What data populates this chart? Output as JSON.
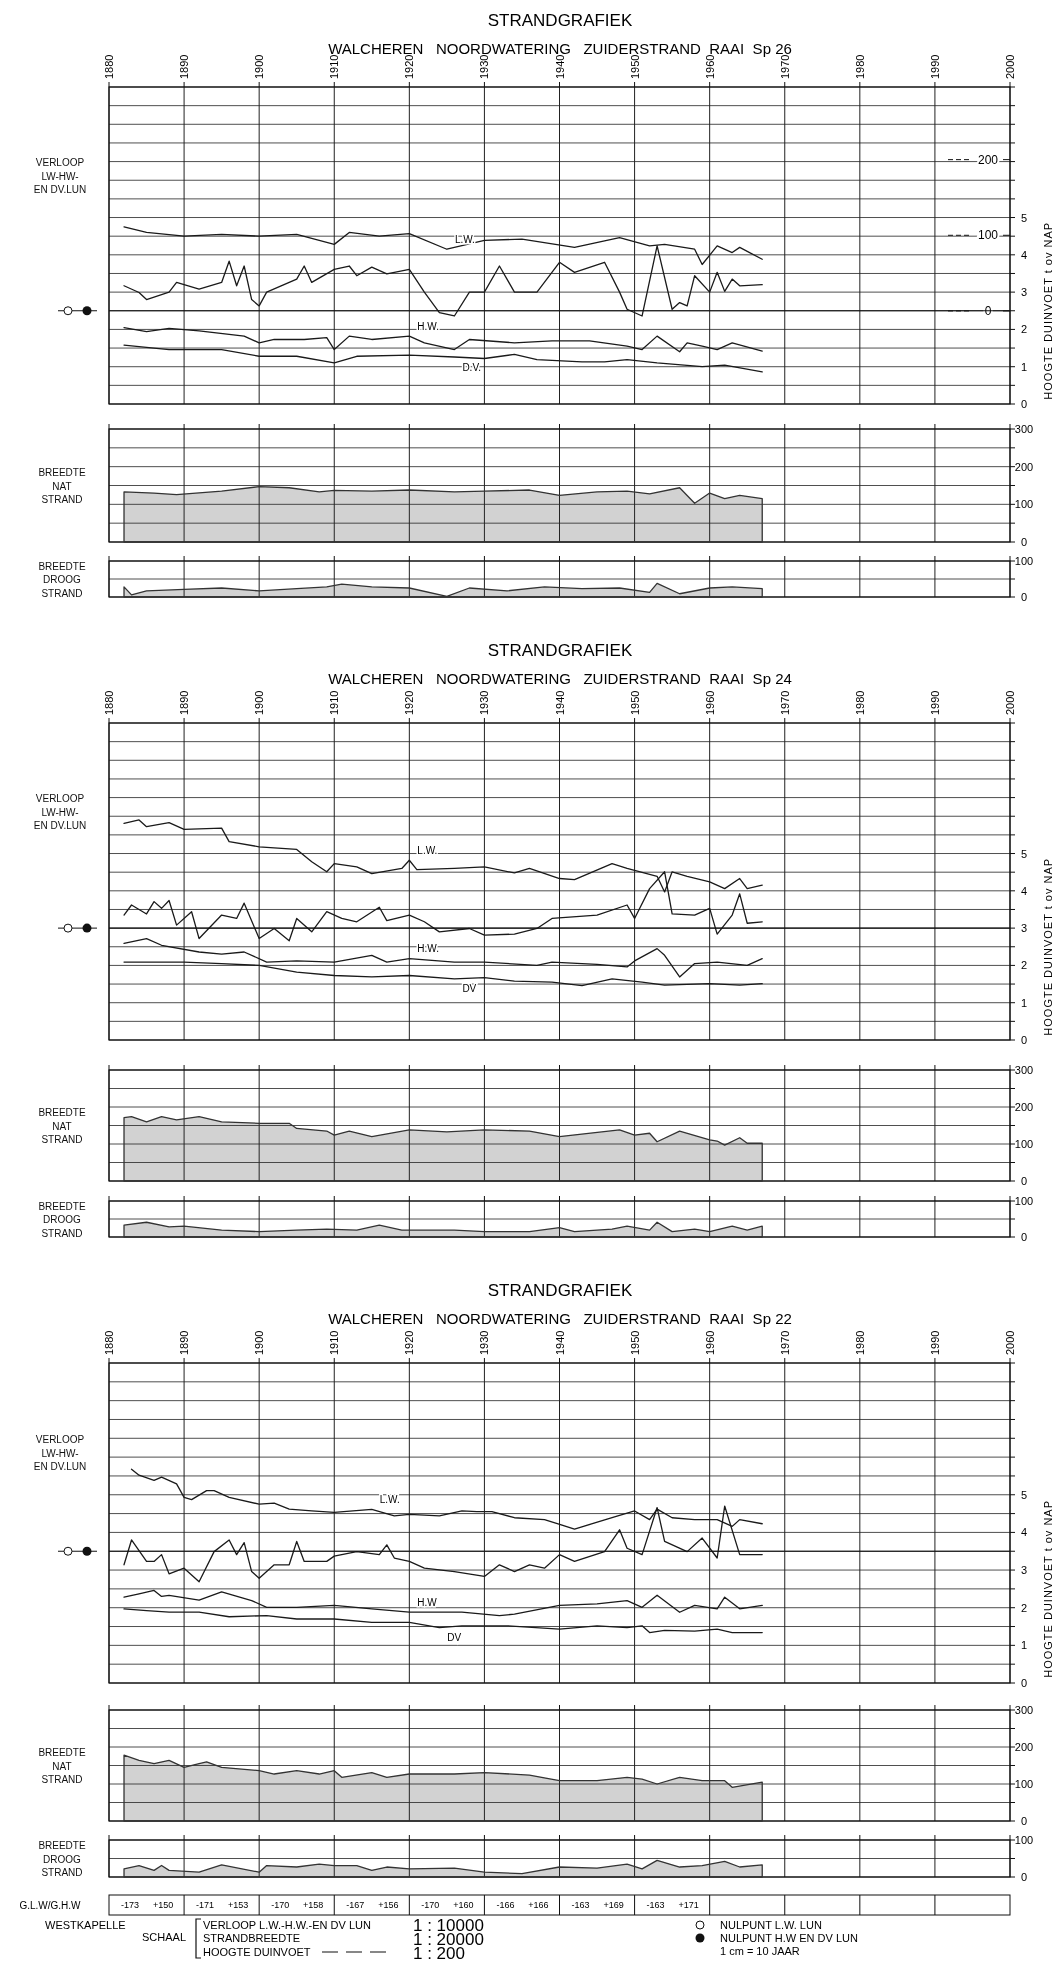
{
  "chart_data": [
    {
      "type": "line",
      "title": "STRANDGRAFIEK",
      "subtitle": "WALCHEREN   NOORDWATERING   ZUIDERSTRAND  RAAI  Sp 26",
      "ylabel": "HOOGTE DUINVOET t ov NAP",
      "annotations": [
        "VERLOOP\nLW-HW-\nEN DV.LUN"
      ],
      "xlim": [
        1880,
        2000
      ],
      "xticks": [
        1880,
        1890,
        1900,
        1910,
        1920,
        1930,
        1940,
        1950,
        1960,
        1970,
        1980,
        1990,
        2000
      ],
      "ylim": [
        0,
        8.5
      ],
      "yticks": [
        0,
        {
          "value": 0.5,
          "label": null
        },
        1,
        {
          "value": 1.5,
          "label": null
        },
        2,
        {
          "value": 2.5,
          "label": null
        },
        3,
        {
          "value": 3.5,
          "label": null
        },
        4,
        {
          "value": 4.5,
          "label": null
        },
        5,
        {
          "value": 5.5,
          "label": null
        },
        {
          "value": 6,
          "label": null
        },
        {
          "value": 6.5,
          "label": null
        },
        {
          "value": 7,
          "label": null
        },
        {
          "value": 7.5,
          "label": null
        },
        {
          "value": 8,
          "label": null
        },
        {
          "value": 8.5,
          "label": null
        }
      ],
      "y2lim": [
        -123,
        296
      ],
      "y2ticks": [
        0,
        100,
        200
      ],
      "grid": true,
      "ref_lines": [
        {
          "axis": "y",
          "value": 2.5
        }
      ],
      "series": [
        {
          "name": "L.W.",
          "color": "#1a1a1a",
          "x": [
            1882,
            1885,
            1890,
            1895,
            1900,
            1905,
            1910,
            1912,
            1916,
            1920,
            1925,
            1930,
            1935,
            1942,
            1948,
            1952,
            1954,
            1958,
            1959,
            1961,
            1963,
            1964,
            1967
          ],
          "values": [
            4.75,
            4.6,
            4.5,
            4.55,
            4.5,
            4.55,
            4.28,
            4.6,
            4.5,
            4.57,
            4.15,
            4.39,
            4.42,
            4.2,
            4.46,
            4.24,
            4.28,
            4.15,
            3.74,
            4.24,
            4.06,
            4.2,
            3.88
          ]
        },
        {
          "color": "#1a1a1a",
          "x": [
            1882,
            1884,
            1885,
            1888,
            1889,
            1892,
            1895,
            1896,
            1897,
            1898,
            1899,
            1900,
            1901,
            1905,
            1906,
            1907,
            1910,
            1912,
            1913,
            1915,
            1917,
            1920,
            1922,
            1924,
            1926,
            1928,
            1930,
            1932,
            1934,
            1937,
            1940,
            1942,
            1946,
            1948,
            1949,
            1951,
            1953,
            1955,
            1956,
            1957,
            1958,
            1960,
            1961,
            1962,
            1963,
            1964,
            1967
          ],
          "values": [
            3.17,
            2.99,
            2.8,
            3.0,
            3.26,
            3.08,
            3.26,
            3.83,
            3.17,
            3.7,
            2.8,
            2.63,
            3.0,
            3.35,
            3.7,
            3.26,
            3.61,
            3.7,
            3.44,
            3.67,
            3.49,
            3.61,
            3.0,
            2.45,
            2.36,
            3.0,
            3.0,
            3.7,
            3.0,
            3.0,
            3.8,
            3.53,
            3.8,
            3.0,
            2.54,
            2.36,
            4.24,
            2.54,
            2.72,
            2.63,
            3.44,
            3.0,
            3.53,
            3.02,
            3.35,
            3.17,
            3.2
          ]
        },
        {
          "name": "H.W.",
          "color": "#1a1a1a",
          "x": [
            1882,
            1885,
            1888,
            1892,
            1898,
            1900,
            1902,
            1906,
            1909,
            1910,
            1912,
            1915,
            1920,
            1922,
            1926,
            1928,
            1934,
            1939,
            1944,
            1949,
            1951,
            1953,
            1956,
            1957,
            1959,
            1961,
            1963,
            1967
          ],
          "values": [
            2.05,
            1.94,
            2.03,
            1.96,
            1.82,
            1.64,
            1.73,
            1.73,
            1.78,
            1.46,
            1.82,
            1.73,
            1.82,
            1.64,
            1.46,
            1.73,
            1.64,
            1.69,
            1.69,
            1.55,
            1.46,
            1.82,
            1.4,
            1.64,
            1.55,
            1.46,
            1.64,
            1.42
          ]
        },
        {
          "name": "D.V.",
          "color": "#1a1a1a",
          "x": [
            1882,
            1888,
            1895,
            1900,
            1905,
            1910,
            1913,
            1920,
            1926,
            1930,
            1934,
            1937,
            1943,
            1946,
            1949,
            1953,
            1959,
            1962,
            1967
          ],
          "values": [
            1.58,
            1.46,
            1.46,
            1.28,
            1.28,
            1.1,
            1.28,
            1.31,
            1.26,
            1.22,
            1.33,
            1.19,
            1.13,
            1.13,
            1.19,
            1.1,
            1.0,
            1.04,
            0.86
          ]
        }
      ]
    },
    {
      "type": "area",
      "ylabel": "BREEDTE\nNAT\nSTRAND",
      "xlim": [
        1880,
        2000
      ],
      "xticks": [
        1880,
        1890,
        1900,
        1910,
        1920,
        1930,
        1940,
        1950,
        1960,
        1970,
        1980,
        1990,
        2000
      ],
      "ylim": [
        0,
        300
      ],
      "yticks": [
        0,
        {
          "value": 50,
          "label": null
        },
        100,
        {
          "value": 150,
          "label": null
        },
        200,
        {
          "value": 250,
          "label": null
        },
        300
      ],
      "grid": true,
      "tick_labels": "y",
      "series": [
        {
          "color": "#333333",
          "x": [
            1882,
            1886,
            1889,
            1895,
            1900,
            1904,
            1908,
            1910,
            1915,
            1920,
            1926,
            1930,
            1936,
            1940,
            1945,
            1949,
            1952,
            1956,
            1958,
            1960,
            1962,
            1964,
            1967
          ],
          "values": [
            133,
            130,
            126,
            135,
            147,
            144,
            133,
            137,
            135,
            138,
            133,
            135,
            138,
            124,
            133,
            135,
            128,
            144,
            103,
            130,
            115,
            124,
            115
          ]
        }
      ]
    },
    {
      "type": "area",
      "ylabel": "BREEDTE\nDROOG\nSTRAND",
      "xlim": [
        1880,
        2000
      ],
      "xticks": [
        1880,
        1890,
        1900,
        1910,
        1920,
        1930,
        1940,
        1950,
        1960,
        1970,
        1980,
        1990,
        2000
      ],
      "ylim": [
        0,
        100
      ],
      "yticks": [
        0,
        {
          "value": 50,
          "label": null
        },
        100
      ],
      "grid": true,
      "tick_labels": "y",
      "series": [
        {
          "color": "#333333",
          "x": [
            1882,
            1883,
            1885,
            1890,
            1895,
            1900,
            1905,
            1909,
            1911,
            1915,
            1920,
            1925,
            1928,
            1933,
            1938,
            1943,
            1948,
            1952,
            1953,
            1956,
            1960,
            1963,
            1967
          ],
          "values": [
            28,
            6,
            17,
            21,
            25,
            17,
            23,
            28,
            36,
            28,
            25,
            2,
            25,
            17,
            28,
            23,
            25,
            13,
            38,
            9,
            25,
            28,
            23
          ]
        }
      ]
    },
    {
      "type": "line",
      "title": "STRANDGRAFIEK",
      "subtitle": "WALCHEREN   NOORDWATERING   ZUIDERSTRAND  RAAI  Sp 24",
      "ylabel": "HOOGTE DUINVOET t ov NAP",
      "annotations": [
        "VERLOOP\nLW-HW-\nEN DV.LUN"
      ],
      "xlim": [
        1880,
        2000
      ],
      "xticks": [
        1880,
        1890,
        1900,
        1910,
        1920,
        1930,
        1940,
        1950,
        1960,
        1970,
        1980,
        1990,
        2000
      ],
      "ylim": [
        0,
        8.5
      ],
      "yticks": [
        0,
        {
          "value": 0.5,
          "label": null
        },
        1,
        {
          "value": 1.5,
          "label": null
        },
        2,
        {
          "value": 2.5,
          "label": null
        },
        3,
        {
          "value": 3.5,
          "label": null
        },
        4,
        {
          "value": 4.5,
          "label": null
        },
        5,
        {
          "value": 5.5,
          "label": null
        },
        {
          "value": 6,
          "label": null
        },
        {
          "value": 6.5,
          "label": null
        },
        {
          "value": 7,
          "label": null
        },
        {
          "value": 7.5,
          "label": null
        },
        {
          "value": 8,
          "label": null
        },
        {
          "value": 8.5,
          "label": null
        }
      ],
      "grid": true,
      "ref_lines": [
        {
          "axis": "y",
          "value": 3
        }
      ],
      "series": [
        {
          "name": "L.W.",
          "color": "#1a1a1a",
          "x": [
            1882,
            1884,
            1885,
            1888,
            1890,
            1895,
            1896,
            1900,
            1905,
            1907,
            1909,
            1910,
            1913,
            1915,
            1919,
            1920,
            1921,
            1926,
            1930,
            1934,
            1936,
            1940,
            1942,
            1947,
            1949,
            1953,
            1954,
            1955,
            1957,
            1960,
            1962,
            1964,
            1965,
            1967
          ],
          "values": [
            5.81,
            5.9,
            5.72,
            5.83,
            5.65,
            5.68,
            5.32,
            5.18,
            5.11,
            4.78,
            4.51,
            4.73,
            4.64,
            4.46,
            4.6,
            4.82,
            4.57,
            4.6,
            4.64,
            4.48,
            4.6,
            4.33,
            4.3,
            4.73,
            4.6,
            4.39,
            3.97,
            4.51,
            4.39,
            4.24,
            4.06,
            4.33,
            4.06,
            4.15
          ]
        },
        {
          "color": "#1a1a1a",
          "x": [
            1882,
            1883,
            1885,
            1886,
            1887,
            1888,
            1889,
            1891,
            1892,
            1895,
            1897,
            1898,
            1900,
            1902,
            1904,
            1905,
            1907,
            1909,
            1911,
            1913,
            1916,
            1917,
            1920,
            1922,
            1924,
            1928,
            1930,
            1934,
            1937,
            1939,
            1945,
            1949,
            1950,
            1952,
            1954,
            1955,
            1958,
            1960,
            1961,
            1963,
            1964,
            1965,
            1967
          ],
          "values": [
            3.35,
            3.62,
            3.38,
            3.71,
            3.53,
            3.74,
            3.08,
            3.44,
            2.72,
            3.35,
            3.26,
            3.67,
            2.72,
            2.99,
            2.66,
            3.26,
            2.9,
            3.44,
            3.26,
            3.17,
            3.56,
            3.2,
            3.35,
            3.17,
            2.9,
            2.99,
            2.81,
            2.84,
            2.99,
            3.26,
            3.35,
            3.62,
            3.26,
            4.06,
            4.51,
            3.38,
            3.35,
            3.53,
            2.84,
            3.35,
            3.92,
            3.13,
            3.17
          ]
        },
        {
          "name": "H.W.",
          "color": "#1a1a1a",
          "x": [
            1882,
            1885,
            1887,
            1892,
            1895,
            1898,
            1901,
            1905,
            1910,
            1915,
            1917,
            1920,
            1926,
            1930,
            1937,
            1939,
            1945,
            1949,
            1950,
            1953,
            1954,
            1956,
            1958,
            1961,
            1965,
            1967
          ],
          "values": [
            2.59,
            2.72,
            2.54,
            2.36,
            2.3,
            2.36,
            2.09,
            2.12,
            2.09,
            2.27,
            2.09,
            2.18,
            2.09,
            2.09,
            2.0,
            2.09,
            2.03,
            1.96,
            2.12,
            2.45,
            2.27,
            1.69,
            2.05,
            2.09,
            2.0,
            2.18
          ]
        },
        {
          "name": "DV",
          "color": "#1a1a1a",
          "x": [
            1882,
            1890,
            1895,
            1900,
            1905,
            1910,
            1915,
            1920,
            1926,
            1930,
            1934,
            1939,
            1943,
            1947,
            1951,
            1954,
            1960,
            1964,
            1967
          ],
          "values": [
            2.09,
            2.09,
            2.05,
            2.0,
            1.82,
            1.73,
            1.69,
            1.73,
            1.64,
            1.67,
            1.58,
            1.55,
            1.46,
            1.64,
            1.55,
            1.47,
            1.51,
            1.47,
            1.51
          ]
        }
      ]
    },
    {
      "type": "area",
      "ylabel": "BREEDTE\nNAT\nSTRAND",
      "xlim": [
        1880,
        2000
      ],
      "xticks": [
        1880,
        1890,
        1900,
        1910,
        1920,
        1930,
        1940,
        1950,
        1960,
        1970,
        1980,
        1990,
        2000
      ],
      "ylim": [
        0,
        300
      ],
      "yticks": [
        0,
        {
          "value": 50,
          "label": null
        },
        100,
        {
          "value": 150,
          "label": null
        },
        200,
        {
          "value": 250,
          "label": null
        },
        300
      ],
      "grid": true,
      "tick_labels": "y",
      "series": [
        {
          "color": "#333333",
          "x": [
            1882,
            1883,
            1885,
            1887,
            1889,
            1892,
            1895,
            1900,
            1904,
            1905,
            1909,
            1910,
            1912,
            1915,
            1920,
            1925,
            1930,
            1936,
            1940,
            1948,
            1950,
            1952,
            1953,
            1956,
            1960,
            1961,
            1962,
            1964,
            1965,
            1967
          ],
          "values": [
            171,
            174,
            160,
            174,
            165,
            174,
            160,
            156,
            156,
            142,
            135,
            124,
            135,
            120,
            138,
            133,
            138,
            135,
            120,
            138,
            124,
            129,
            106,
            135,
            111,
            108,
            97,
            117,
            102,
            102
          ]
        }
      ]
    },
    {
      "type": "area",
      "ylabel": "BREEDTE\nDROOG\nSTRAND",
      "xlim": [
        1880,
        2000
      ],
      "xticks": [
        1880,
        1890,
        1900,
        1910,
        1920,
        1930,
        1940,
        1950,
        1960,
        1970,
        1980,
        1990,
        2000
      ],
      "ylim": [
        0,
        100
      ],
      "yticks": [
        0,
        {
          "value": 50,
          "label": null
        },
        100
      ],
      "grid": true,
      "tick_labels": "y",
      "series": [
        {
          "color": "#333333",
          "x": [
            1882,
            1885,
            1888,
            1890,
            1895,
            1900,
            1905,
            1909,
            1913,
            1916,
            1919,
            1926,
            1930,
            1936,
            1940,
            1942,
            1947,
            1949,
            1952,
            1953,
            1955,
            1958,
            1960,
            1963,
            1965,
            1967
          ],
          "values": [
            33,
            41,
            28,
            30,
            19,
            15,
            19,
            22,
            19,
            33,
            19,
            19,
            15,
            15,
            26,
            15,
            22,
            30,
            19,
            41,
            15,
            22,
            15,
            30,
            19,
            30
          ]
        }
      ]
    },
    {
      "type": "line",
      "title": "STRANDGRAFIEK",
      "subtitle": "WALCHEREN   NOORDWATERING   ZUIDERSTRAND  RAAI  Sp 22",
      "ylabel": "HOOGTE DUINVOET t ov NAP",
      "annotations": [
        "VERLOOP\nLW-HW-\nEN DV.LUN"
      ],
      "xlim": [
        1880,
        2000
      ],
      "xticks": [
        1880,
        1890,
        1900,
        1910,
        1920,
        1930,
        1940,
        1950,
        1960,
        1970,
        1980,
        1990,
        2000
      ],
      "ylim": [
        0,
        8.5
      ],
      "yticks": [
        0,
        {
          "value": 0.5,
          "label": null
        },
        1,
        {
          "value": 1.5,
          "label": null
        },
        2,
        {
          "value": 2.5,
          "label": null
        },
        3,
        {
          "value": 3.5,
          "label": null
        },
        4,
        {
          "value": 4.5,
          "label": null
        },
        5,
        {
          "value": 5.5,
          "label": null
        },
        {
          "value": 6,
          "label": null
        },
        {
          "value": 6.5,
          "label": null
        },
        {
          "value": 7,
          "label": null
        },
        {
          "value": 7.5,
          "label": null
        },
        {
          "value": 8,
          "label": null
        },
        {
          "value": 8.5,
          "label": null
        }
      ],
      "grid": true,
      "ref_lines": [
        {
          "axis": "y",
          "value": 3.5
        }
      ],
      "series": [
        {
          "name": "L.W.",
          "color": "#1a1a1a",
          "x": [
            1883,
            1884,
            1886,
            1887,
            1889,
            1890,
            1891,
            1893,
            1894,
            1896,
            1900,
            1902,
            1904,
            1907,
            1910,
            1915,
            1918,
            1920,
            1924,
            1927,
            1929,
            1931,
            1934,
            1938,
            1942,
            1947,
            1950,
            1952,
            1953,
            1955,
            1958,
            1961,
            1963,
            1964,
            1967
          ],
          "values": [
            5.68,
            5.52,
            5.38,
            5.47,
            5.29,
            4.93,
            4.87,
            5.11,
            5.11,
            4.93,
            4.75,
            4.78,
            4.62,
            4.57,
            4.53,
            4.61,
            4.44,
            4.48,
            4.44,
            4.57,
            4.55,
            4.55,
            4.39,
            4.34,
            4.09,
            4.39,
            4.57,
            4.34,
            4.62,
            4.39,
            4.34,
            4.34,
            4.16,
            4.34,
            4.23
          ]
        },
        {
          "color": "#1a1a1a",
          "x": [
            1882,
            1883,
            1885,
            1886,
            1887,
            1888,
            1890,
            1892,
            1894,
            1896,
            1897,
            1898,
            1899,
            1900,
            1902,
            1904,
            1905,
            1906,
            1909,
            1910,
            1913,
            1916,
            1917,
            1918,
            1920,
            1922,
            1926,
            1930,
            1932,
            1934,
            1936,
            1938,
            1940,
            1942,
            1946,
            1948,
            1949,
            1951,
            1953,
            1954,
            1957,
            1959,
            1961,
            1962,
            1964,
            1967
          ],
          "values": [
            3.14,
            3.8,
            3.23,
            3.23,
            3.41,
            2.9,
            3.05,
            2.69,
            3.49,
            3.8,
            3.41,
            3.73,
            2.96,
            2.78,
            3.14,
            3.14,
            3.76,
            3.23,
            3.23,
            3.37,
            3.49,
            3.41,
            3.67,
            3.32,
            3.23,
            3.05,
            2.96,
            2.83,
            3.14,
            2.96,
            3.14,
            3.05,
            3.41,
            3.23,
            3.49,
            4.07,
            3.58,
            3.41,
            4.66,
            3.76,
            3.49,
            3.85,
            3.32,
            4.7,
            3.41,
            3.41
          ]
        },
        {
          "name": "H.W",
          "color": "#1a1a1a",
          "x": [
            1882,
            1884,
            1886,
            1887,
            1888,
            1892,
            1895,
            1899,
            1901,
            1905,
            1910,
            1915,
            1920,
            1927,
            1932,
            1934,
            1940,
            1945,
            1949,
            1951,
            1953,
            1956,
            1958,
            1961,
            1962,
            1964,
            1967
          ],
          "values": [
            2.28,
            2.37,
            2.46,
            2.3,
            2.33,
            2.2,
            2.42,
            2.19,
            2.01,
            2.01,
            2.06,
            1.97,
            1.88,
            1.88,
            1.79,
            1.83,
            2.06,
            2.1,
            2.19,
            2.01,
            2.33,
            1.88,
            2.06,
            1.97,
            2.28,
            1.97,
            2.06
          ]
        },
        {
          "name": "DV",
          "color": "#1a1a1a",
          "x": [
            1882,
            1885,
            1888,
            1892,
            1896,
            1901,
            1905,
            1910,
            1915,
            1920,
            1924,
            1927,
            1933,
            1940,
            1945,
            1949,
            1951,
            1952,
            1954,
            1958,
            1961,
            1963,
            1967
          ],
          "values": [
            1.97,
            1.92,
            1.88,
            1.88,
            1.76,
            1.79,
            1.7,
            1.7,
            1.61,
            1.61,
            1.47,
            1.52,
            1.52,
            1.43,
            1.52,
            1.47,
            1.52,
            1.34,
            1.4,
            1.38,
            1.43,
            1.34,
            1.34
          ]
        }
      ]
    },
    {
      "type": "area",
      "ylabel": "BREEDTE\nNAT\nSTRAND",
      "xlim": [
        1880,
        2000
      ],
      "xticks": [
        1880,
        1890,
        1900,
        1910,
        1920,
        1930,
        1940,
        1950,
        1960,
        1970,
        1980,
        1990,
        2000
      ],
      "ylim": [
        0,
        300
      ],
      "yticks": [
        0,
        {
          "value": 50,
          "label": null
        },
        100,
        {
          "value": 150,
          "label": null
        },
        200,
        {
          "value": 250,
          "label": null
        },
        300
      ],
      "grid": true,
      "tick_labels": "y",
      "series": [
        {
          "color": "#333333",
          "x": [
            1882,
            1884,
            1886,
            1888,
            1890,
            1892,
            1893,
            1895,
            1900,
            1902,
            1905,
            1908,
            1910,
            1911,
            1915,
            1917,
            1920,
            1926,
            1930,
            1936,
            1940,
            1945,
            1949,
            1951,
            1953,
            1956,
            1959,
            1962,
            1963,
            1967
          ],
          "values": [
            178,
            164,
            155,
            164,
            145,
            155,
            160,
            145,
            136,
            127,
            136,
            127,
            136,
            118,
            131,
            118,
            127,
            127,
            131,
            124,
            109,
            109,
            118,
            113,
            100,
            118,
            109,
            109,
            91,
            105
          ]
        }
      ]
    },
    {
      "type": "area",
      "ylabel": "BREEDTE\nDROOG\nSTRAND",
      "xlim": [
        1880,
        2000
      ],
      "xticks": [
        1880,
        1890,
        1900,
        1910,
        1920,
        1930,
        1940,
        1950,
        1960,
        1970,
        1980,
        1990,
        2000
      ],
      "ylim": [
        0,
        100
      ],
      "yticks": [
        0,
        {
          "value": 50,
          "label": null
        },
        100
      ],
      "grid": true,
      "tick_labels": "y",
      "annotations": [
        "G.L.W/G.H.W",
        "-173",
        "+150",
        "-171",
        "+153",
        "-170",
        "+158",
        "-167",
        "+156",
        "-170",
        "+160",
        "-166",
        "+166",
        "-163",
        "+169",
        "-163",
        "+171",
        "WESTKAPELLE",
        "SCHAAL",
        "VERLOOP L.W.-H.W.-EN DV LUN",
        "1 : 10000",
        "STRANDBREEDTE",
        "1 : 20000",
        "HOOGTE DUINVOET",
        "1 : 200",
        "NULPUNT  L.W. LUN",
        "NULPUNT  H.W EN DV LUN",
        "1 cm = 10 JAAR"
      ],
      "series": [
        {
          "color": "#333333",
          "x": [
            1882,
            1884,
            1886,
            1887,
            1888,
            1892,
            1895,
            1900,
            1901,
            1905,
            1908,
            1910,
            1913,
            1915,
            1917,
            1920,
            1926,
            1930,
            1935,
            1940,
            1945,
            1949,
            1951,
            1953,
            1956,
            1959,
            1962,
            1964,
            1967
          ],
          "values": [
            22,
            31,
            18,
            31,
            18,
            13,
            33,
            13,
            31,
            27,
            35,
            31,
            31,
            18,
            27,
            22,
            24,
            13,
            9,
            27,
            24,
            35,
            22,
            45,
            27,
            31,
            42,
            27,
            33
          ]
        }
      ]
    }
  ]
}
